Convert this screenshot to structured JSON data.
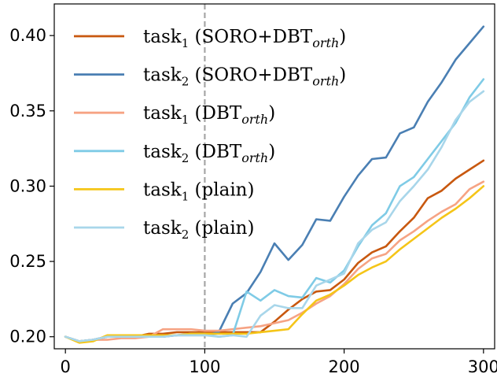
{
  "chart_data": {
    "type": "line",
    "title": "",
    "xlabel": "",
    "ylabel": "",
    "xlim": [
      -8,
      308
    ],
    "ylim": [
      0.192,
      0.421
    ],
    "x_ticks": [
      0,
      100,
      200,
      300
    ],
    "y_ticks": [
      0.2,
      0.25,
      0.3,
      0.35,
      0.4
    ],
    "x_tick_labels": [
      "0",
      "100",
      "200",
      "300"
    ],
    "y_tick_labels": [
      "0.20",
      "0.25",
      "0.30",
      "0.35",
      "0.40"
    ],
    "vline": {
      "x": 100,
      "style": "dashed",
      "color": "#a6a6a6"
    },
    "legend_position": "top-left",
    "x": [
      0,
      10,
      20,
      30,
      40,
      50,
      60,
      70,
      80,
      90,
      100,
      110,
      120,
      130,
      140,
      150,
      160,
      170,
      180,
      190,
      200,
      210,
      220,
      230,
      240,
      250,
      260,
      270,
      280,
      290,
      300
    ],
    "series": [
      {
        "name": "task1 (SORO+DBTorth)",
        "legend": {
          "base": "task",
          "sub": "1",
          "text": "(SORO+DBT",
          "ital": "orth",
          "close": ")"
        },
        "color": "#c8580f",
        "values": [
          0.2,
          0.197,
          0.198,
          0.2,
          0.2,
          0.2,
          0.202,
          0.202,
          0.203,
          0.203,
          0.203,
          0.203,
          0.203,
          0.203,
          0.203,
          0.21,
          0.218,
          0.225,
          0.23,
          0.231,
          0.238,
          0.249,
          0.256,
          0.26,
          0.27,
          0.279,
          0.292,
          0.297,
          0.305,
          0.311,
          0.317
        ]
      },
      {
        "name": "task2 (SORO+DBTorth)",
        "legend": {
          "base": "task",
          "sub": "2",
          "text": "(SORO+DBT",
          "ital": "orth",
          "close": ")"
        },
        "color": "#4a7fb3",
        "values": [
          0.2,
          0.197,
          0.198,
          0.2,
          0.2,
          0.2,
          0.2,
          0.2,
          0.201,
          0.201,
          0.201,
          0.203,
          0.222,
          0.229,
          0.243,
          0.262,
          0.251,
          0.261,
          0.278,
          0.277,
          0.293,
          0.307,
          0.318,
          0.319,
          0.335,
          0.339,
          0.356,
          0.369,
          0.384,
          0.395,
          0.406
        ]
      },
      {
        "name": "task1 (DBTorth)",
        "legend": {
          "base": "task",
          "sub": "1",
          "text": "(DBT",
          "ital": "orth",
          "close": ")"
        },
        "color": "#f6a384",
        "values": [
          0.2,
          0.197,
          0.198,
          0.198,
          0.199,
          0.199,
          0.2,
          0.205,
          0.205,
          0.205,
          0.204,
          0.204,
          0.205,
          0.206,
          0.207,
          0.209,
          0.211,
          0.216,
          0.222,
          0.227,
          0.235,
          0.245,
          0.252,
          0.255,
          0.264,
          0.27,
          0.277,
          0.283,
          0.288,
          0.298,
          0.303
        ]
      },
      {
        "name": "task2 (DBTorth)",
        "legend": {
          "base": "task",
          "sub": "2",
          "text": "(DBT",
          "ital": "orth",
          "close": ")"
        },
        "color": "#7fcbe6",
        "values": [
          0.2,
          0.197,
          0.198,
          0.2,
          0.2,
          0.2,
          0.2,
          0.201,
          0.201,
          0.202,
          0.202,
          0.2,
          0.201,
          0.23,
          0.224,
          0.231,
          0.227,
          0.226,
          0.239,
          0.236,
          0.244,
          0.26,
          0.274,
          0.282,
          0.3,
          0.306,
          0.318,
          0.33,
          0.342,
          0.359,
          0.371
        ]
      },
      {
        "name": "task1 (plain)",
        "legend": {
          "base": "task",
          "sub": "1",
          "text": "(plain)",
          "ital": "",
          "close": ""
        },
        "color": "#f5c518",
        "values": [
          0.2,
          0.196,
          0.197,
          0.201,
          0.201,
          0.201,
          0.201,
          0.201,
          0.201,
          0.202,
          0.202,
          0.202,
          0.202,
          0.202,
          0.203,
          0.204,
          0.205,
          0.215,
          0.224,
          0.228,
          0.234,
          0.241,
          0.246,
          0.25,
          0.258,
          0.265,
          0.272,
          0.279,
          0.285,
          0.292,
          0.3
        ]
      },
      {
        "name": "task2 (plain)",
        "legend": {
          "base": "task",
          "sub": "2",
          "text": "(plain)",
          "ital": "",
          "close": ""
        },
        "color": "#a8d6ea",
        "values": [
          0.2,
          0.197,
          0.198,
          0.2,
          0.2,
          0.2,
          0.2,
          0.2,
          0.201,
          0.201,
          0.201,
          0.2,
          0.201,
          0.2,
          0.214,
          0.221,
          0.219,
          0.219,
          0.234,
          0.238,
          0.242,
          0.262,
          0.271,
          0.276,
          0.29,
          0.3,
          0.311,
          0.326,
          0.344,
          0.356,
          0.363
        ]
      }
    ]
  }
}
